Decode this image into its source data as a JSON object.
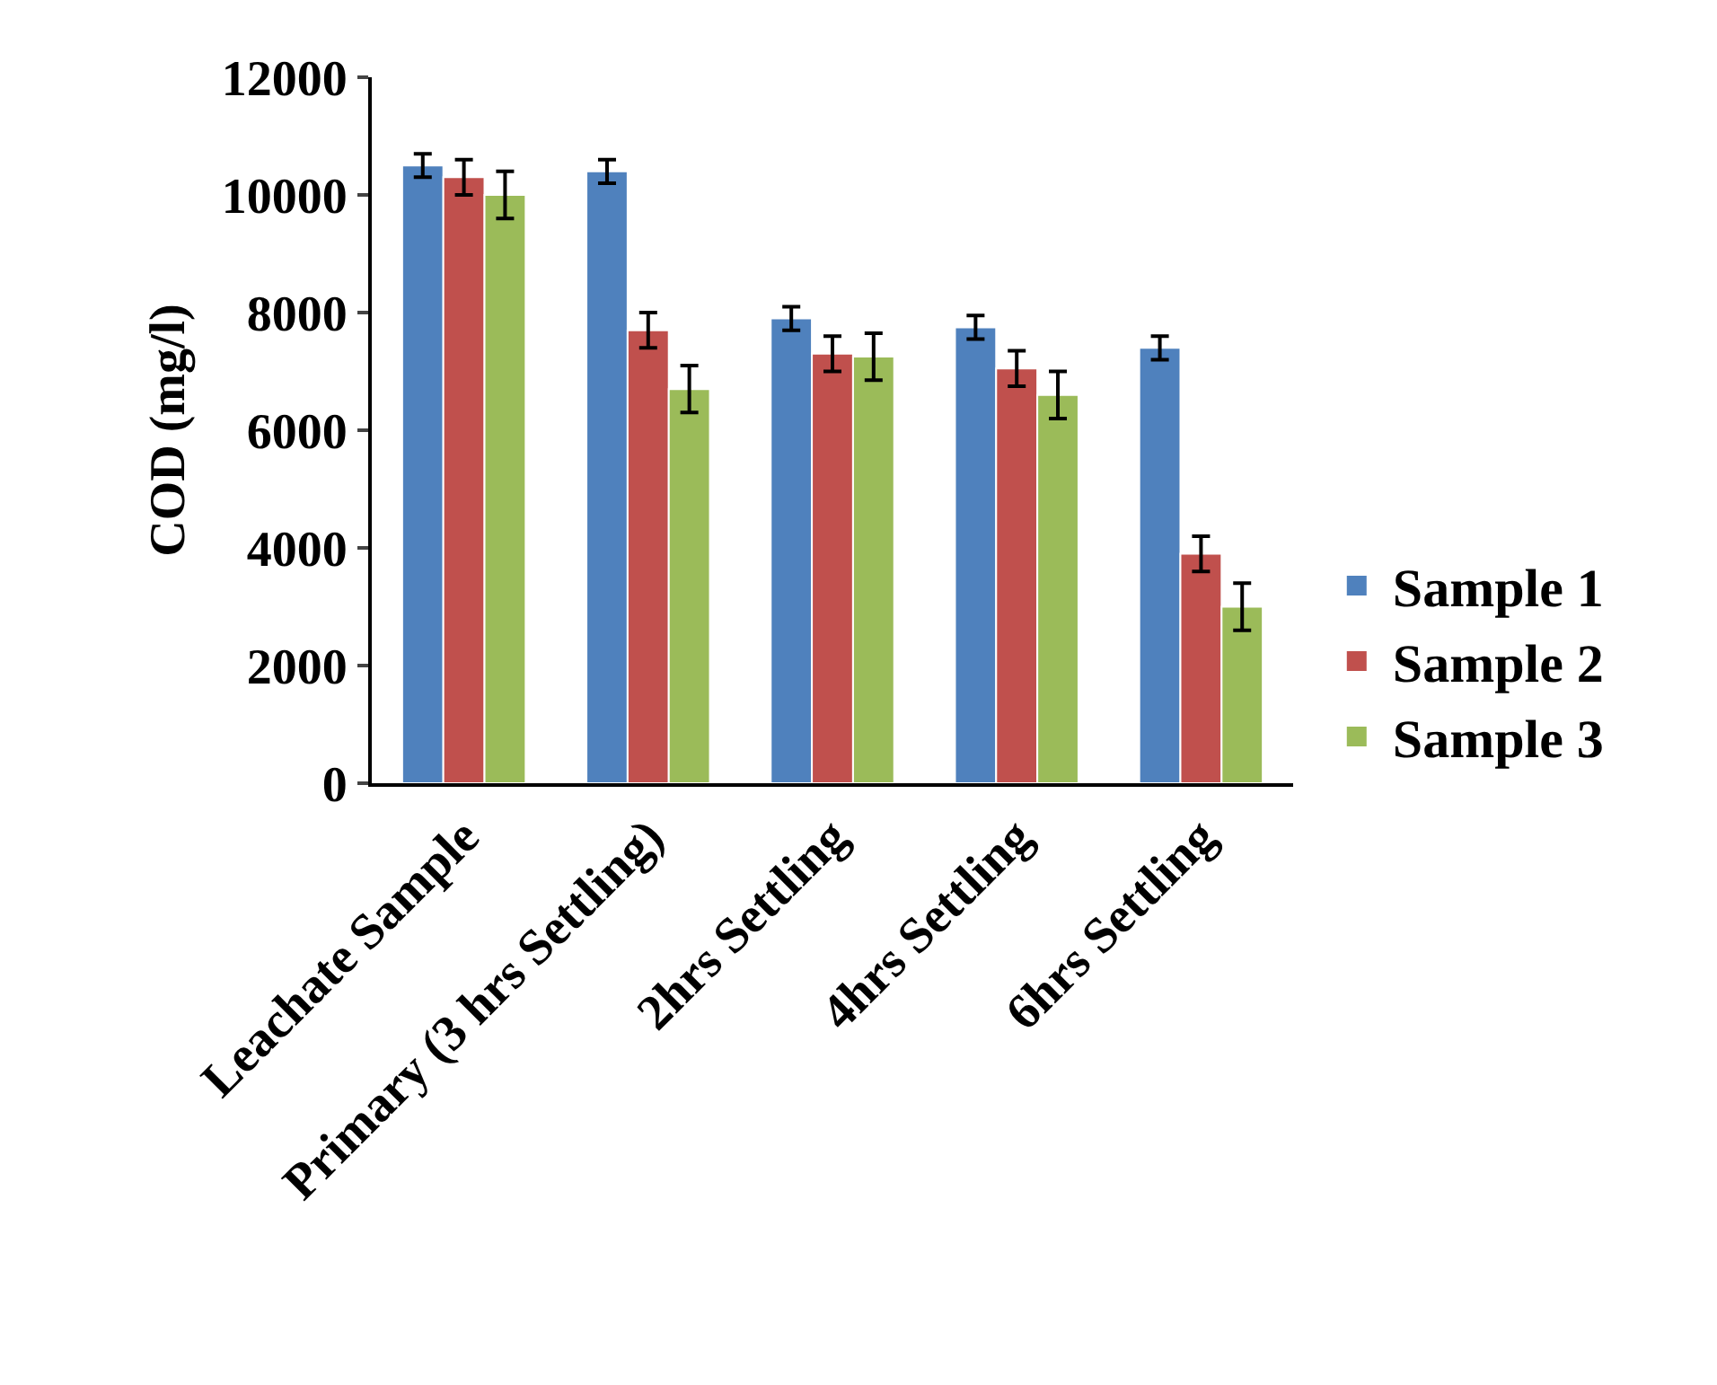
{
  "chart_data": {
    "type": "bar",
    "ylabel": "COD (mg/l)",
    "categories": [
      "Leachate Sample",
      "Primary (3 hrs Settling)",
      "2hrs Settling",
      "4hrs Settling",
      "6hrs Settling"
    ],
    "series": [
      {
        "name": "Sample 1",
        "color": "#4f81bd",
        "values": [
          10500,
          10400,
          7900,
          7750,
          7400
        ],
        "errors": [
          200,
          200,
          200,
          200,
          200
        ]
      },
      {
        "name": "Sample 2",
        "color": "#c0504d",
        "values": [
          10300,
          7700,
          7300,
          7050,
          3900
        ],
        "errors": [
          300,
          300,
          300,
          300,
          300
        ]
      },
      {
        "name": "Sample 3",
        "color": "#9bbb59",
        "values": [
          10000,
          6700,
          7250,
          6600,
          3000
        ],
        "errors": [
          400,
          400,
          400,
          400,
          400
        ]
      }
    ],
    "ylim": [
      0,
      12000
    ],
    "yticks": [
      0,
      2000,
      4000,
      6000,
      8000,
      10000,
      12000
    ],
    "grid": false,
    "legend": "right"
  }
}
